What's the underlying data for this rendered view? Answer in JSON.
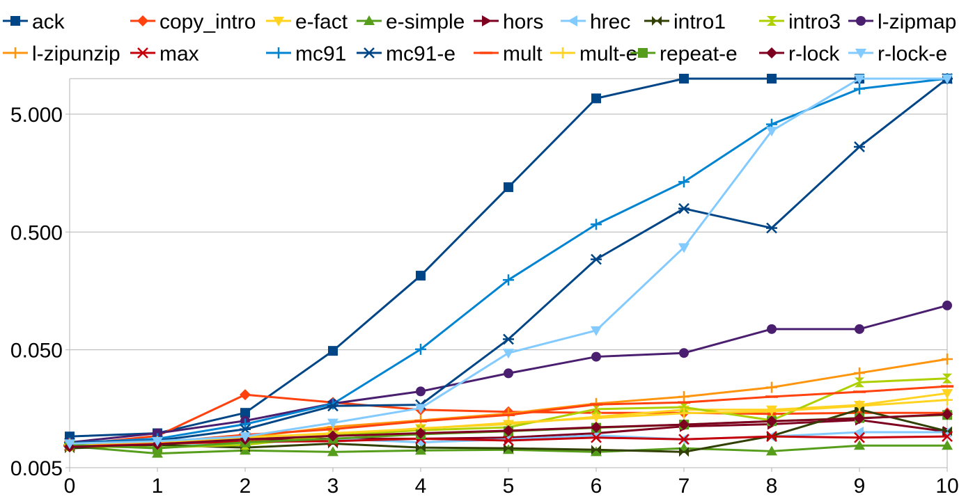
{
  "chart_data": {
    "type": "line",
    "title": "",
    "xlabel": "",
    "ylabel": "",
    "x": [
      0,
      1,
      2,
      3,
      4,
      5,
      6,
      7,
      8,
      9,
      10
    ],
    "x_ticks": [
      "0",
      "1",
      "2",
      "3",
      "4",
      "5",
      "6",
      "7",
      "8",
      "9",
      "10"
    ],
    "y_scale": "log",
    "ylim": [
      0.005,
      10
    ],
    "y_ticks": [
      0.005,
      0.05,
      0.5,
      5
    ],
    "y_tick_labels": [
      "0.005",
      "0.050",
      "0.500",
      "5.000"
    ],
    "grid": "horizontal",
    "legend_position": "top",
    "series": [
      {
        "name": "ack",
        "color": "#004586",
        "marker": "square",
        "values": [
          0.0092,
          0.0098,
          0.0146,
          0.049,
          0.213,
          1.2,
          6.8,
          10,
          10,
          10,
          10
        ]
      },
      {
        "name": "copy_intro",
        "color": "#ff420e",
        "marker": "diamond",
        "values": [
          0.0078,
          0.0093,
          0.0208,
          0.0179,
          0.0155,
          0.0149,
          0.0146,
          0.0146,
          0.0143,
          0.0146,
          0.0146
        ]
      },
      {
        "name": "e-fact",
        "color": "#ffd320",
        "marker": "triangle-down",
        "values": [
          0.0077,
          0.0079,
          0.0083,
          0.0095,
          0.0108,
          0.0117,
          0.0135,
          0.0155,
          0.0155,
          0.017,
          0.0214
        ]
      },
      {
        "name": "e-simple",
        "color": "#579d1c",
        "marker": "triangle-up",
        "values": [
          0.0076,
          0.0066,
          0.007,
          0.0068,
          0.007,
          0.0071,
          0.0068,
          0.0073,
          0.0069,
          0.0077,
          0.0077
        ]
      },
      {
        "name": "hors",
        "color": "#7e0021",
        "marker": "triangle-right",
        "values": [
          0.0076,
          0.008,
          0.0087,
          0.0088,
          0.0088,
          0.009,
          0.0098,
          0.0112,
          0.0117,
          0.0127,
          0.0101
        ]
      },
      {
        "name": "hrec",
        "color": "#83caff",
        "marker": "triangle-left",
        "values": [
          0.008,
          0.0076,
          0.008,
          0.0088,
          0.0082,
          0.0087,
          0.0094,
          0.0087,
          0.0092,
          0.01,
          0.01
        ]
      },
      {
        "name": "intro1",
        "color": "#314004",
        "marker": "bowtie",
        "values": [
          0.0073,
          0.0078,
          0.0074,
          0.008,
          0.0074,
          0.0073,
          0.0071,
          0.0068,
          0.0093,
          0.0156,
          0.0102
        ]
      },
      {
        "name": "intro3",
        "color": "#aecf00",
        "marker": "hourglass",
        "values": [
          0.0076,
          0.0074,
          0.0078,
          0.0094,
          0.0104,
          0.011,
          0.0157,
          0.0163,
          0.0126,
          0.0265,
          0.0286
        ]
      },
      {
        "name": "l-zipmap",
        "color": "#4b1f6f",
        "marker": "circle",
        "values": [
          0.0082,
          0.0098,
          0.0125,
          0.0175,
          0.0222,
          0.0316,
          0.0437,
          0.047,
          0.075,
          0.075,
          0.119
        ]
      },
      {
        "name": "l-zipunzip",
        "color": "#ff950e",
        "marker": "plus",
        "values": [
          0.0081,
          0.0082,
          0.009,
          0.0111,
          0.0126,
          0.0144,
          0.0175,
          0.02,
          0.024,
          0.0318,
          0.0417
        ]
      },
      {
        "name": "max",
        "color": "#c5000b",
        "marker": "x",
        "values": [
          0.0077,
          0.008,
          0.0083,
          0.0084,
          0.0088,
          0.0085,
          0.009,
          0.0087,
          0.0092,
          0.009,
          0.0092
        ]
      },
      {
        "name": "mc91",
        "color": "#0084d1",
        "marker": "plus",
        "values": [
          0.0081,
          0.0088,
          0.0117,
          0.0174,
          0.0505,
          0.196,
          0.58,
          1.33,
          4.1,
          8.2,
          10
        ]
      },
      {
        "name": "mc91-e",
        "color": "#004586",
        "marker": "asterisk",
        "values": [
          0.0081,
          0.0085,
          0.0106,
          0.0167,
          0.0171,
          0.0615,
          0.293,
          0.79,
          0.54,
          2.64,
          10
        ]
      },
      {
        "name": "mult",
        "color": "#ff420e",
        "marker": "dash",
        "values": [
          0.0077,
          0.0082,
          0.0095,
          0.0106,
          0.0124,
          0.014,
          0.0172,
          0.0179,
          0.02,
          0.022,
          0.0245
        ]
      },
      {
        "name": "mult-e",
        "color": "#ffd320",
        "marker": "plus",
        "values": [
          0.0079,
          0.0083,
          0.009,
          0.0098,
          0.0107,
          0.012,
          0.0132,
          0.0145,
          0.015,
          0.0167,
          0.0188
        ]
      },
      {
        "name": "repeat-e",
        "color": "#579d1c",
        "marker": "square",
        "values": [
          0.0078,
          0.0073,
          0.0082,
          0.0088,
          0.0096,
          0.0102,
          0.0109,
          0.0116,
          0.0124,
          0.0132,
          0.014
        ]
      },
      {
        "name": "r-lock",
        "color": "#7e0021",
        "marker": "diamond",
        "values": [
          0.0075,
          0.0079,
          0.0087,
          0.0093,
          0.0098,
          0.0103,
          0.011,
          0.0116,
          0.0124,
          0.0131,
          0.0142
        ]
      },
      {
        "name": "r-lock-e",
        "color": "#83caff",
        "marker": "triangle-down",
        "values": [
          0.008,
          0.0084,
          0.0092,
          0.012,
          0.016,
          0.047,
          0.073,
          0.37,
          3.6,
          10,
          10
        ]
      }
    ]
  }
}
